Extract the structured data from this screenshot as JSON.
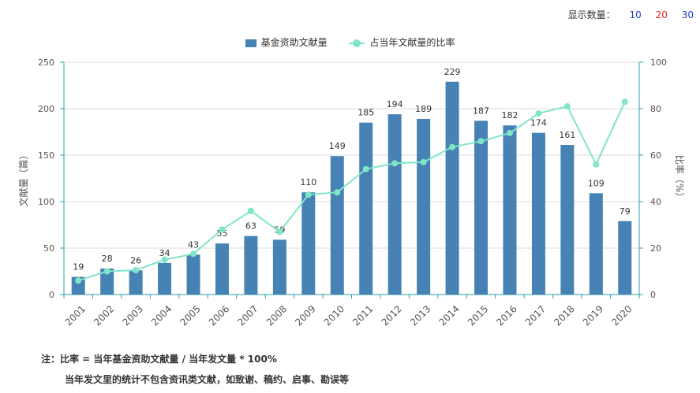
{
  "controls": {
    "label": "显示数量：",
    "options": [
      "10",
      "20",
      "30"
    ]
  },
  "legend": {
    "bar": "基金资助文献量",
    "line": "占当年文献量的比率"
  },
  "notes": {
    "line1": "注：比率 = 当年基金资助文献量 / 当年发文量 * 100%",
    "line2": "当年发文里的统计不包含资讯类文献，如致谢、稿约、启事、勘误等"
  },
  "chart_data": {
    "type": "bar+line",
    "categories": [
      "2001",
      "2002",
      "2003",
      "2004",
      "2005",
      "2006",
      "2007",
      "2008",
      "2009",
      "2010",
      "2011",
      "2012",
      "2013",
      "2014",
      "2015",
      "2016",
      "2017",
      "2018",
      "2019",
      "2020"
    ],
    "series": [
      {
        "name": "基金资助文献量",
        "type": "bar",
        "axis": "left",
        "values": [
          19,
          28,
          26,
          34,
          43,
          55,
          63,
          59,
          110,
          149,
          185,
          194,
          189,
          229,
          187,
          182,
          174,
          161,
          109,
          79
        ]
      },
      {
        "name": "占当年文献量的比率",
        "type": "line",
        "axis": "right",
        "values": [
          6,
          10,
          10.5,
          15,
          17.5,
          28,
          36,
          27,
          43,
          44,
          54,
          56.5,
          57,
          63.5,
          66,
          69.5,
          78,
          81,
          56,
          83
        ]
      }
    ],
    "ylabel_left": "文献量（篇）",
    "ylabel_right": "比率（%）",
    "ylim_left": [
      0,
      250
    ],
    "ylim_right": [
      0,
      100
    ],
    "yticks_left": [
      0,
      50,
      100,
      150,
      200,
      250
    ],
    "yticks_right": [
      0,
      20,
      40,
      60,
      80,
      100
    ],
    "grid": true,
    "colors": {
      "bar": "#4682b4",
      "line": "#7fe5c8",
      "axis": "#2aa0a8"
    }
  }
}
